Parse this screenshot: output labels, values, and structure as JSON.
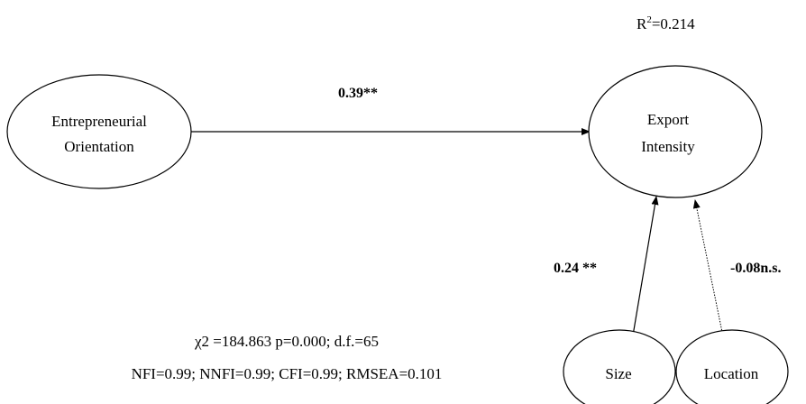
{
  "diagram": {
    "nodes": {
      "eo": {
        "line1": "Entrepreneurial",
        "line2": "Orientation"
      },
      "ei": {
        "line1": "Export",
        "line2": "Intensity"
      },
      "size": {
        "label": "Size"
      },
      "location": {
        "label": "Location"
      }
    },
    "edges": {
      "eo_ei": {
        "label": "0.39**",
        "style": "solid"
      },
      "size_ei": {
        "label": "0.24 **",
        "style": "solid"
      },
      "location_ei": {
        "label": "-0.08n.s.",
        "style": "dotted"
      }
    },
    "r2": {
      "base": "R",
      "sup": "2",
      "value": "=0.214"
    },
    "fit": {
      "line1": "χ2 =184.863 p=0.000; d.f.=65",
      "line2": "NFI=0.99; NNFI=0.99; CFI=0.99; RMSEA=0.101"
    }
  }
}
